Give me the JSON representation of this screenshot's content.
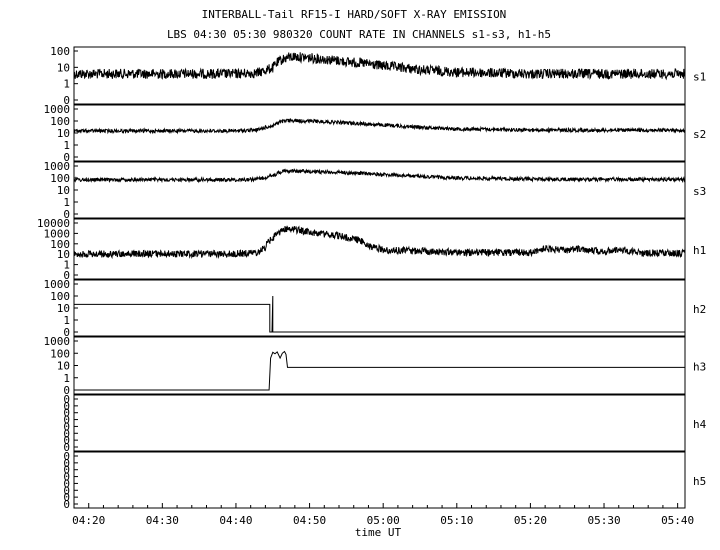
{
  "chart_data": {
    "type": "line",
    "title": "INTERBALL-Tail RF15-I HARD/SOFT X-RAY EMISSION",
    "subtitle": "LBS 04:30 05:30 980320  COUNT RATE IN CHANNELS s1-s3, h1-h5",
    "xlabel": "time UT",
    "x_ticks": [
      "04:20",
      "04:30",
      "04:40",
      "04:50",
      "05:00",
      "05:10",
      "05:20",
      "05:30",
      "05:40"
    ],
    "x_range": [
      "04:18",
      "05:41"
    ],
    "panels": [
      {
        "name": "s1",
        "ylog": true,
        "y_ticks": [
          "100",
          "10",
          "1",
          "0"
        ],
        "series": [
          {
            "x": [
              "04:18",
              "04:30",
              "04:40",
              "04:43",
              "04:45",
              "04:46",
              "04:47",
              "04:48",
              "04:50",
              "04:55",
              "05:00",
              "05:05",
              "05:10",
              "05:20",
              "05:30",
              "05:41"
            ],
            "y": [
              4,
              4,
              4,
              4.5,
              9,
              25,
              40,
              45,
              38,
              22,
              12,
              7,
              5,
              4,
              4,
              4
            ]
          }
        ]
      },
      {
        "name": "s2",
        "ylog": true,
        "y_ticks": [
          "1000",
          "100",
          "10",
          "1",
          "0"
        ],
        "series": [
          {
            "x": [
              "04:18",
              "04:30",
              "04:40",
              "04:43",
              "04:45",
              "04:46",
              "04:47",
              "04:50",
              "04:55",
              "05:00",
              "05:05",
              "05:10",
              "05:20",
              "05:30",
              "05:41"
            ],
            "y": [
              15,
              15,
              15,
              18,
              40,
              80,
              110,
              100,
              70,
              45,
              30,
              22,
              18,
              17,
              17
            ]
          }
        ]
      },
      {
        "name": "s3",
        "ylog": true,
        "y_ticks": [
          "1000",
          "100",
          "10",
          "1",
          "0"
        ],
        "series": [
          {
            "x": [
              "04:18",
              "04:30",
              "04:40",
              "04:43",
              "04:45",
              "04:46",
              "04:47",
              "04:50",
              "04:55",
              "05:00",
              "05:05",
              "05:10",
              "05:20",
              "05:30",
              "05:41"
            ],
            "y": [
              70,
              72,
              70,
              80,
              150,
              300,
              400,
              350,
              280,
              190,
              130,
              100,
              80,
              75,
              75
            ]
          }
        ]
      },
      {
        "name": "h1",
        "ylog": true,
        "y_ticks": [
          "10000",
          "1000",
          "100",
          "10",
          "1",
          "0"
        ],
        "series": [
          {
            "x": [
              "04:18",
              "04:30",
              "04:40",
              "04:43",
              "04:44",
              "04:45",
              "04:46",
              "04:47",
              "04:50",
              "04:55",
              "04:58",
              "05:00",
              "05:10",
              "05:20",
              "05:22",
              "05:25",
              "05:26",
              "05:30",
              "05:32",
              "05:35",
              "05:41"
            ],
            "y": [
              10,
              11,
              11,
              14,
              40,
              300,
              1500,
              3000,
              1200,
              400,
              60,
              25,
              15,
              14,
              35,
              20,
              40,
              15,
              30,
              13,
              12
            ]
          }
        ]
      },
      {
        "name": "h2",
        "ylog": true,
        "y_ticks": [
          "1000",
          "100",
          "10",
          "1",
          "0"
        ],
        "series": [
          {
            "x": [
              "04:18",
              "04:44.6",
              "04:44.6",
              "04:44.9",
              "04:45.0",
              "04:45.0",
              "05:41"
            ],
            "y": [
              20,
              20,
              0,
              0,
              100,
              0,
              0
            ]
          }
        ]
      },
      {
        "name": "h3",
        "ylog": true,
        "y_ticks": [
          "1000",
          "100",
          "10",
          "1",
          "0"
        ],
        "series": [
          {
            "x": [
              "04:18",
              "04:44.5",
              "04:44.7",
              "04:45.0",
              "04:45.3",
              "04:45.6",
              "04:46.0",
              "04:46.3",
              "04:46.6",
              "04:46.8",
              "04:47.0",
              "04:47.0",
              "05:41"
            ],
            "y": [
              0,
              0,
              40,
              120,
              90,
              130,
              40,
              100,
              140,
              80,
              7,
              7,
              7
            ]
          }
        ]
      },
      {
        "name": "h4",
        "ylog": false,
        "y_ticks": [
          "0",
          "0",
          "0",
          "0",
          "0",
          "0",
          "0",
          "0"
        ],
        "series": []
      },
      {
        "name": "h5",
        "ylog": false,
        "y_ticks": [
          "0",
          "0",
          "0",
          "0",
          "0",
          "0",
          "0",
          "0"
        ],
        "series": []
      }
    ]
  }
}
